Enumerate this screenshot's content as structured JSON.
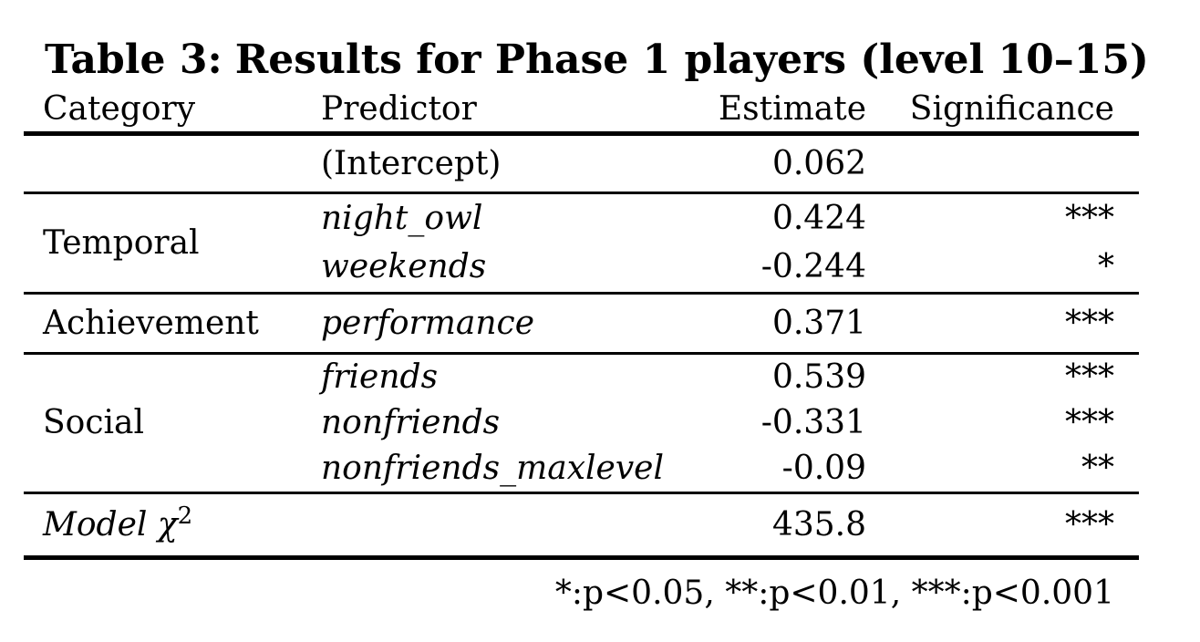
{
  "title": {
    "prefix": "Table 3:",
    "text": "Results for Phase 1 players (level 10–15)"
  },
  "columns": {
    "category": "Category",
    "predictor": "Predictor",
    "estimate": "Estimate",
    "significance": "Significance"
  },
  "sections": [
    {
      "category": "",
      "rows": [
        {
          "predictor": "(Intercept)",
          "estimate": "0.062",
          "significance": ""
        }
      ]
    },
    {
      "category": "Temporal",
      "rows": [
        {
          "predictor": "night_owl",
          "estimate": "0.424",
          "significance": "***"
        },
        {
          "predictor": "weekends",
          "estimate": "-0.244",
          "significance": "*"
        }
      ]
    },
    {
      "category": "Achievement",
      "rows": [
        {
          "predictor": "performance",
          "estimate": "0.371",
          "significance": "***"
        }
      ]
    },
    {
      "category": "Social",
      "rows": [
        {
          "predictor": "friends",
          "estimate": "0.539",
          "significance": "***"
        },
        {
          "predictor": "nonfriends",
          "estimate": "-0.331",
          "significance": "***"
        },
        {
          "predictor": "nonfriends_maxlevel",
          "estimate": "-0.09",
          "significance": "**"
        }
      ]
    },
    {
      "category_parts": {
        "base": "Model χ",
        "sup": "2"
      },
      "rows": [
        {
          "predictor": "",
          "estimate": "435.8",
          "significance": "***"
        }
      ]
    }
  ],
  "footnote": "*:p<0.05, **:p<0.01, ***:p<0.001",
  "colors": {
    "text": "#000000",
    "background": "#ffffff",
    "rule": "#000000"
  }
}
